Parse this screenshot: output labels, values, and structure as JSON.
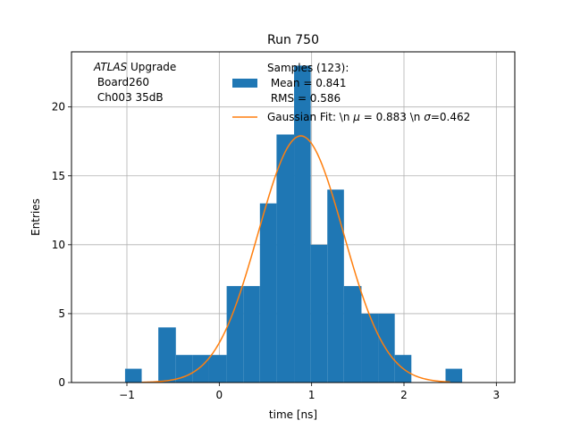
{
  "chart_data": {
    "type": "bar",
    "title": "Run 750",
    "xlabel": "time [ns]",
    "ylabel": "Entries",
    "xlim": [
      -1.6,
      3.2
    ],
    "ylim": [
      0,
      24
    ],
    "xticks": [
      -1,
      0,
      1,
      2,
      3
    ],
    "yticks": [
      0,
      5,
      10,
      15,
      20
    ],
    "grid": true,
    "annotation": {
      "italic": "ATLAS",
      "line1_rest": " Upgrade",
      "line2": " Board260",
      "line3": " Ch003 35dB"
    },
    "legend": {
      "placement": "top-right",
      "hist_label_lines": [
        "Samples (123):",
        " Mean = 0.841",
        " RMS = 0.586"
      ],
      "fit_label_prefix": "Gaussian Fit: \\n ",
      "fit_mu_symbol": "μ",
      "fit_mu_value": " = 0.883 \\n ",
      "fit_sigma_symbol": "σ",
      "fit_sigma_value": "=0.462"
    },
    "series": [
      {
        "kind": "histogram",
        "color": "#1f77b4",
        "bins": [
          {
            "x0": -1.02,
            "x1": -0.84,
            "count": 1
          },
          {
            "x0": -0.66,
            "x1": -0.47,
            "count": 4
          },
          {
            "x0": -0.47,
            "x1": -0.29,
            "count": 2
          },
          {
            "x0": -0.29,
            "x1": -0.11,
            "count": 2
          },
          {
            "x0": -0.11,
            "x1": 0.08,
            "count": 2
          },
          {
            "x0": 0.08,
            "x1": 0.26,
            "count": 7
          },
          {
            "x0": 0.26,
            "x1": 0.44,
            "count": 7
          },
          {
            "x0": 0.44,
            "x1": 0.62,
            "count": 13
          },
          {
            "x0": 0.62,
            "x1": 0.81,
            "count": 18
          },
          {
            "x0": 0.81,
            "x1": 0.99,
            "count": 23
          },
          {
            "x0": 0.99,
            "x1": 1.17,
            "count": 10
          },
          {
            "x0": 1.17,
            "x1": 1.35,
            "count": 14
          },
          {
            "x0": 1.35,
            "x1": 1.54,
            "count": 7
          },
          {
            "x0": 1.54,
            "x1": 1.72,
            "count": 5
          },
          {
            "x0": 1.72,
            "x1": 1.9,
            "count": 5
          },
          {
            "x0": 1.9,
            "x1": 2.08,
            "count": 2
          },
          {
            "x0": 2.45,
            "x1": 2.63,
            "count": 1
          }
        ]
      },
      {
        "kind": "gaussian-fit",
        "color": "#ff7f0e",
        "mu": 0.883,
        "sigma": 0.462,
        "amplitude": 17.9,
        "x_range": [
          -0.84,
          2.5
        ]
      }
    ]
  }
}
